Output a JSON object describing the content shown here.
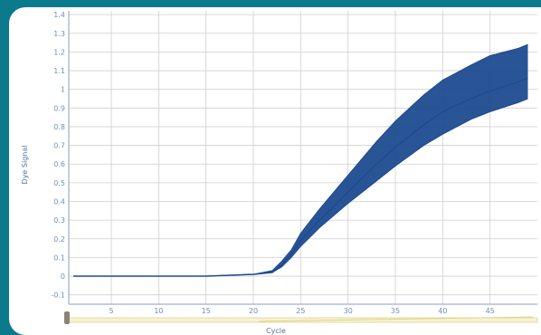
{
  "chart_data": {
    "type": "line",
    "x": [
      1,
      5,
      10,
      15,
      20,
      22,
      23,
      24,
      25,
      27,
      30,
      33,
      35,
      38,
      40,
      43,
      45,
      48,
      49
    ],
    "series": [
      {
        "values": [
          0.0,
          0.0,
          0.0,
          0.0,
          0.01,
          0.03,
          0.08,
          0.14,
          0.23,
          0.36,
          0.54,
          0.72,
          0.83,
          0.97,
          1.05,
          1.13,
          1.18,
          1.22,
          1.24
        ]
      },
      {
        "values": [
          0.0,
          0.0,
          0.0,
          0.0,
          0.01,
          0.02,
          0.06,
          0.12,
          0.19,
          0.3,
          0.45,
          0.6,
          0.69,
          0.81,
          0.88,
          0.95,
          0.99,
          1.04,
          1.06
        ]
      },
      {
        "values": [
          0.0,
          0.0,
          0.0,
          0.0,
          0.01,
          0.02,
          0.05,
          0.1,
          0.16,
          0.26,
          0.39,
          0.51,
          0.59,
          0.7,
          0.76,
          0.84,
          0.88,
          0.93,
          0.95
        ]
      }
    ],
    "xlabel": "Cycle",
    "ylabel": "Dye Signal",
    "xlim": [
      0.5,
      50
    ],
    "ylim": [
      -0.15,
      1.42
    ],
    "xticks": [
      5,
      10,
      15,
      20,
      25,
      30,
      35,
      40,
      45
    ],
    "yticks": [
      -0.1,
      0,
      0.1,
      0.2,
      0.3,
      0.4,
      0.5,
      0.6,
      0.7,
      0.8,
      0.9,
      1,
      1.1,
      1.2,
      1.3,
      1.4
    ],
    "grid": true,
    "colors": {
      "line": "#1e4b8f",
      "grid": "#cfcfcf",
      "axis": "#8a9db6",
      "background": "#0b7a8c",
      "slider": "#e2d387",
      "slider_knob": "#8c8274"
    }
  }
}
